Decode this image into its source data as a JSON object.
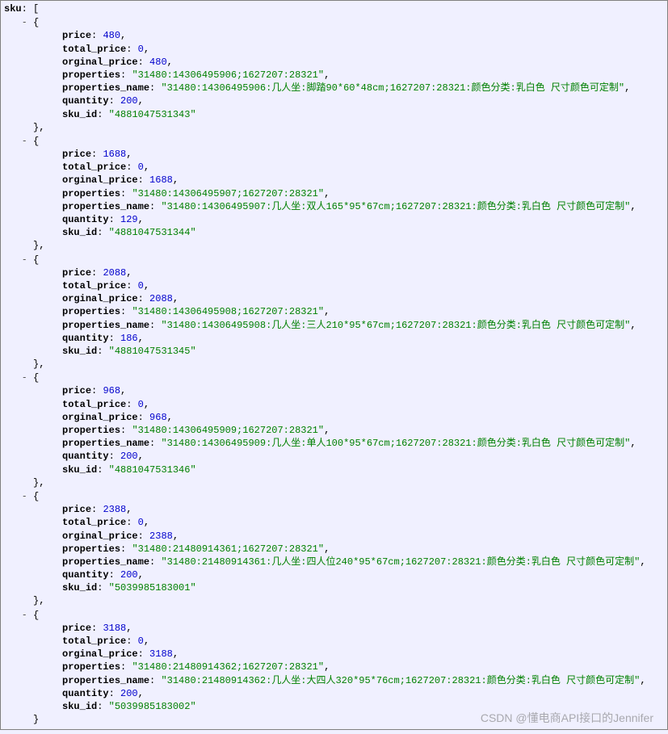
{
  "root_key": "sku",
  "watermark": "CSDN @懂电商API接口的Jennifer",
  "indent": {
    "l1": "   ",
    "l2": "          ",
    "close": "     "
  },
  "labels": {
    "price": "price",
    "total_price": "total_price",
    "orginal_price": "orginal_price",
    "properties": "properties",
    "properties_name": "properties_name",
    "quantity": "quantity",
    "sku_id": "sku_id"
  },
  "show_close": true,
  "items": [
    {
      "price": 480,
      "total_price": 0,
      "orginal_price": 480,
      "properties": "31480:14306495906;1627207:28321",
      "properties_name": "31480:14306495906:几人坐:脚踏90*60*48cm;1627207:28321:颜色分类:乳白色 尺寸颜色可定制",
      "quantity": 200,
      "sku_id": "4881047531343"
    },
    {
      "price": 1688,
      "total_price": 0,
      "orginal_price": 1688,
      "properties": "31480:14306495907;1627207:28321",
      "properties_name": "31480:14306495907:几人坐:双人165*95*67cm;1627207:28321:颜色分类:乳白色 尺寸颜色可定制",
      "quantity": 129,
      "sku_id": "4881047531344"
    },
    {
      "price": 2088,
      "total_price": 0,
      "orginal_price": 2088,
      "properties": "31480:14306495908;1627207:28321",
      "properties_name": "31480:14306495908:几人坐:三人210*95*67cm;1627207:28321:颜色分类:乳白色 尺寸颜色可定制",
      "quantity": 186,
      "sku_id": "4881047531345"
    },
    {
      "price": 968,
      "total_price": 0,
      "orginal_price": 968,
      "properties": "31480:14306495909;1627207:28321",
      "properties_name": "31480:14306495909:几人坐:单人100*95*67cm;1627207:28321:颜色分类:乳白色 尺寸颜色可定制",
      "quantity": 200,
      "sku_id": "4881047531346"
    },
    {
      "price": 2388,
      "total_price": 0,
      "orginal_price": 2388,
      "properties": "31480:21480914361;1627207:28321",
      "properties_name": "31480:21480914361:几人坐:四人位240*95*67cm;1627207:28321:颜色分类:乳白色 尺寸颜色可定制",
      "quantity": 200,
      "sku_id": "5039985183001"
    },
    {
      "price": 3188,
      "total_price": 0,
      "orginal_price": 3188,
      "properties": "31480:21480914362;1627207:28321",
      "properties_name": "31480:21480914362:几人坐:大四人320*95*76cm;1627207:28321:颜色分类:乳白色 尺寸颜色可定制",
      "quantity": 200,
      "sku_id": "5039985183002"
    }
  ]
}
